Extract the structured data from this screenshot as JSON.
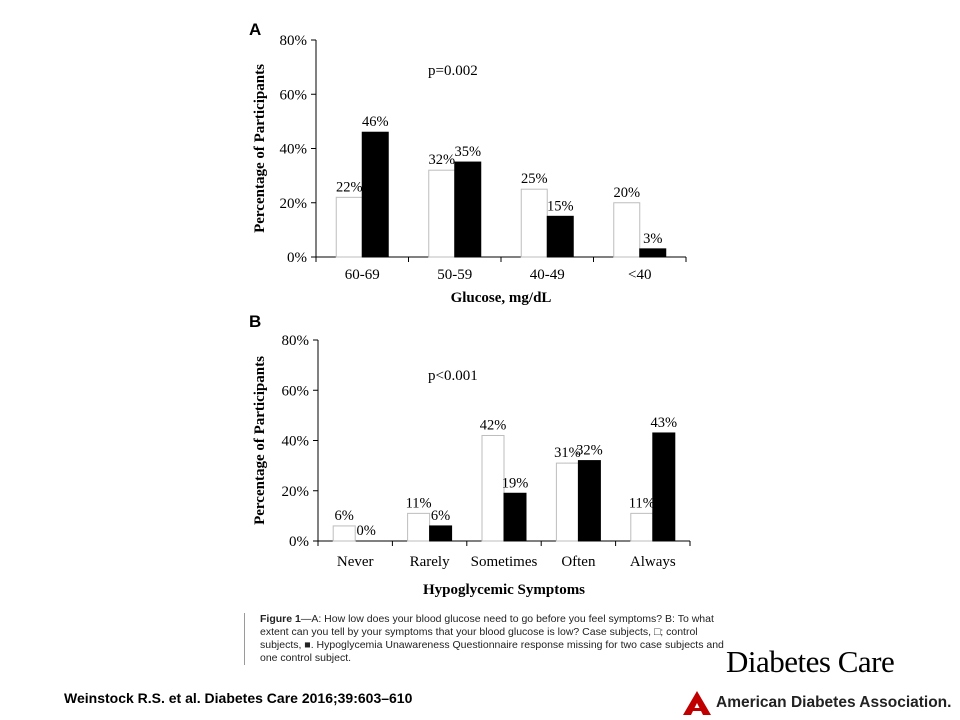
{
  "theme": {
    "accent": "#c00000",
    "open_bar_fill": "#ffffff",
    "filled_bar_fill": "#000000"
  },
  "chart_data": [
    {
      "type": "bar",
      "panel": "A",
      "pvalue": "p=0.002",
      "xlabel": "Glucose, mg/dL",
      "ylabel": "Percentage of Participants",
      "categories": [
        "60-69",
        "50-59",
        "40-49",
        "<40"
      ],
      "ylim": [
        0,
        80
      ],
      "yticks": [
        "0%",
        "20%",
        "40%",
        "60%",
        "80%"
      ],
      "series": [
        {
          "fill": "#ffffff",
          "values": [
            22,
            32,
            25,
            20
          ],
          "labels": [
            "22%",
            "32%",
            "25%",
            "20%"
          ]
        },
        {
          "fill": "#000000",
          "values": [
            46,
            35,
            15,
            3
          ],
          "labels": [
            "46%",
            "35%",
            "15%",
            "3%"
          ]
        }
      ],
      "grid": false
    },
    {
      "type": "bar",
      "panel": "B",
      "pvalue": "p<0.001",
      "xlabel": "Hypoglycemic Symptoms",
      "ylabel": "Percentage of Participants",
      "categories": [
        "Never",
        "Rarely",
        "Sometimes",
        "Often",
        "Always"
      ],
      "ylim": [
        0,
        80
      ],
      "yticks": [
        "0%",
        "20%",
        "40%",
        "60%",
        "80%"
      ],
      "series": [
        {
          "fill": "#ffffff",
          "values": [
            6,
            11,
            42,
            31,
            11
          ],
          "labels": [
            "6%",
            "11%",
            "42%",
            "31%",
            "11%"
          ]
        },
        {
          "fill": "#000000",
          "values": [
            0,
            6,
            19,
            32,
            43
          ],
          "labels": [
            "0%",
            "6%",
            "19%",
            "32%",
            "43%"
          ]
        }
      ],
      "grid": false
    }
  ],
  "caption": {
    "figure_label": "Figure 1",
    "text": "—A: How low does your blood glucose need to go before you feel symptoms? B: To what extent can you tell by your symptoms that your blood glucose is low? Case subjects, □; control subjects, ■. Hypoglycemia Unawareness Questionnaire response missing for two case subjects and one control subject."
  },
  "citation": "Weinstock R.S. et al. Diabetes Care 2016;39:603–610",
  "branding": {
    "journal": "Diabetes Care",
    "association": "American Diabetes Association."
  }
}
